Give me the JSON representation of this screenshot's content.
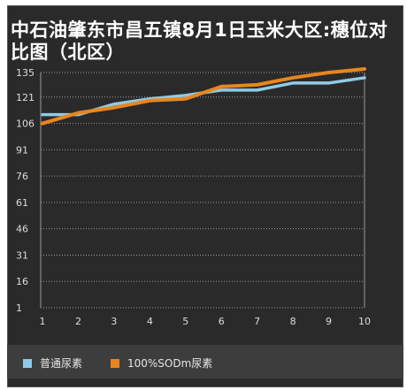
{
  "chart_data": {
    "type": "line",
    "title": "中石油肇东市昌五镇8月1日玉米大区:穗位对比图（北区）",
    "x": [
      1,
      2,
      3,
      4,
      5,
      6,
      7,
      8,
      9,
      10
    ],
    "yticks": [
      1,
      16,
      31,
      46,
      61,
      76,
      91,
      106,
      121,
      135
    ],
    "ylim": [
      1,
      135
    ],
    "grid": true,
    "legend_position": "bottom",
    "series": [
      {
        "name": "普通尿素",
        "color": "#8fcbe6",
        "values": [
          111,
          111,
          117,
          120,
          122,
          125,
          125,
          129,
          129,
          132
        ]
      },
      {
        "name": "100%SODm尿素",
        "color": "#e8861e",
        "values": [
          106,
          112,
          115,
          119,
          120,
          127,
          128,
          132,
          135,
          137
        ]
      }
    ]
  }
}
